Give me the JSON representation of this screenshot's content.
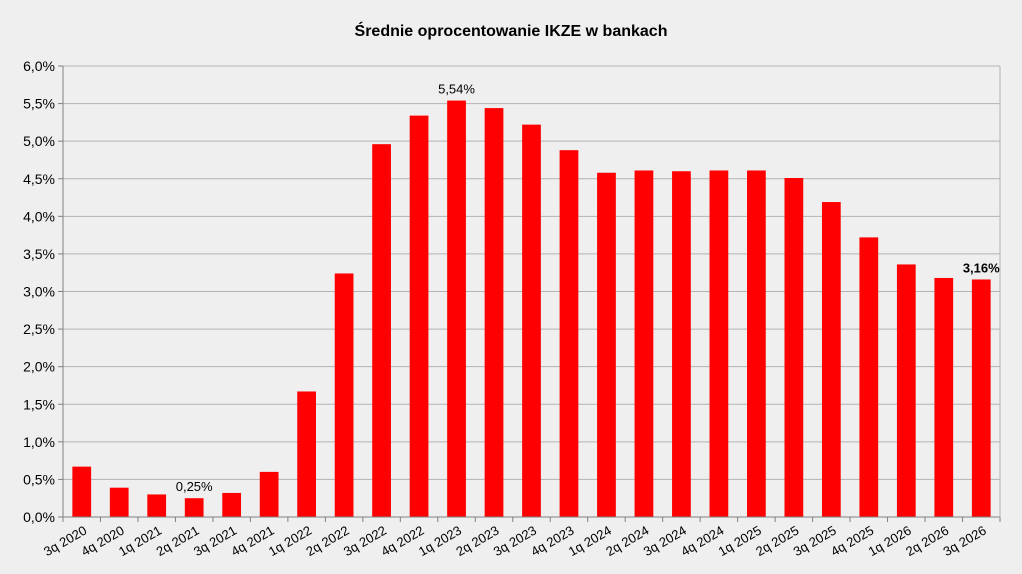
{
  "chart_data": {
    "type": "bar",
    "title": "Średnie oprocentowanie IKZE w bankach",
    "xlabel": "",
    "ylabel": "",
    "categories": [
      "3q 2020",
      "4q 2020",
      "1q 2021",
      "2q 2021",
      "3q 2021",
      "4q 2021",
      "1q 2022",
      "2q 2022",
      "3q 2022",
      "4q 2022",
      "1q 2023",
      "2q 2023",
      "3q 2023",
      "4q 2023",
      "1q 2024",
      "2q 2024",
      "3q 2024",
      "4q 2024",
      "1q 2025",
      "2q 2025",
      "3q 2025",
      "4q 2025",
      "1q 2026",
      "2q 2026",
      "3q 2026"
    ],
    "values": [
      0.67,
      0.39,
      0.3,
      0.25,
      0.32,
      0.6,
      1.67,
      3.24,
      4.96,
      5.34,
      5.54,
      5.44,
      5.22,
      4.88,
      4.58,
      4.61,
      4.6,
      4.61,
      4.61,
      4.51,
      4.19,
      3.72,
      3.36,
      3.18,
      3.16
    ],
    "ylim": [
      0,
      6
    ],
    "yticks": [
      "0,0%",
      "0,5%",
      "1,0%",
      "1,5%",
      "2,0%",
      "2,5%",
      "3,0%",
      "3,5%",
      "4,0%",
      "4,5%",
      "5,0%",
      "5,5%",
      "6,0%"
    ],
    "grid": true,
    "bar_color": "#ff0000",
    "grid_color": "#b3b3b3",
    "annotations": [
      {
        "index": 3,
        "text": "0,25%",
        "bold": false
      },
      {
        "index": 10,
        "text": "5,54%",
        "bold": false
      },
      {
        "index": 24,
        "text": "3,16%",
        "bold": true
      }
    ]
  }
}
